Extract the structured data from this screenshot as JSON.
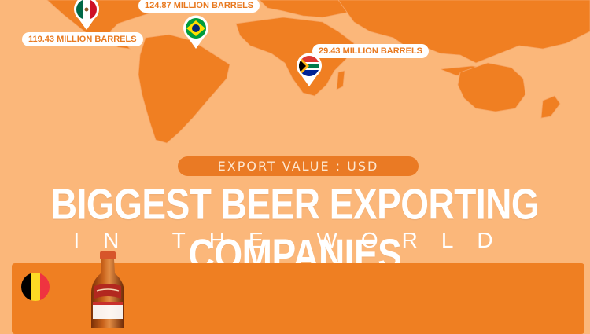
{
  "title": {
    "subtitle": "EXPORT VALUE : USD",
    "main": "BIGGEST BEER EXPORTING COMPANIES",
    "sub": "IN THE WORLD"
  },
  "map_labels": [
    {
      "country": "Mexico",
      "value": "119.43 MILLION BARRELS"
    },
    {
      "country": "Brazil",
      "value": "124.87 MILLION BARRELS"
    },
    {
      "country": "South Africa",
      "value": "29.43 MILLION BARRELS"
    }
  ],
  "colors": {
    "background": "#fbb77a",
    "land": "#f07f22",
    "accent": "#ea7a24",
    "panel": "#ef7f22"
  },
  "icons": [
    "mexico-flag-icon",
    "brazil-flag-icon",
    "south-africa-flag-icon",
    "belgium-flag-icon",
    "beer-bottle-icon"
  ]
}
